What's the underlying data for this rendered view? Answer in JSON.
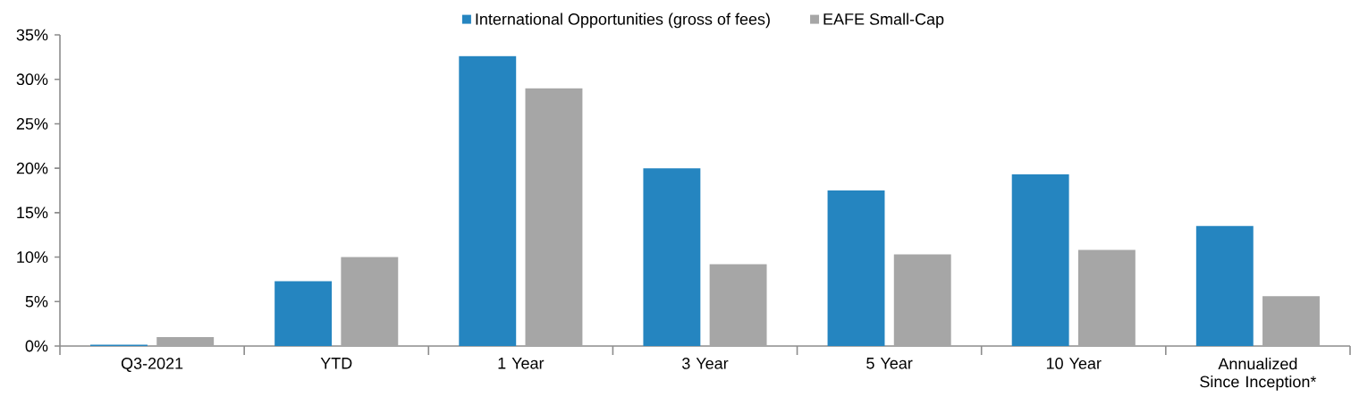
{
  "chart_data": {
    "type": "bar",
    "categories": [
      "Q3-2021",
      "YTD",
      "1 Year",
      "3 Year",
      "5 Year",
      "10 Year",
      "Annualized Since Inception*"
    ],
    "series": [
      {
        "name": "International Opportunities (gross of fees)",
        "color": "#2585c0",
        "values": [
          0.15,
          7.3,
          32.6,
          20.0,
          17.5,
          19.3,
          13.5
        ]
      },
      {
        "name": "EAFE Small-Cap",
        "color": "#a6a6a6",
        "values": [
          1.0,
          10.0,
          29.0,
          9.2,
          10.3,
          10.8,
          5.6
        ]
      }
    ],
    "ylim": [
      0,
      35
    ],
    "yticks": [
      {
        "value": 0,
        "label": "0%"
      },
      {
        "value": 5,
        "label": "5%"
      },
      {
        "value": 10,
        "label": "10%"
      },
      {
        "value": 15,
        "label": "15%"
      },
      {
        "value": 20,
        "label": "20%"
      },
      {
        "value": 25,
        "label": "25%"
      },
      {
        "value": 30,
        "label": "30%"
      },
      {
        "value": 35,
        "label": "35%"
      }
    ],
    "legend": "top"
  }
}
